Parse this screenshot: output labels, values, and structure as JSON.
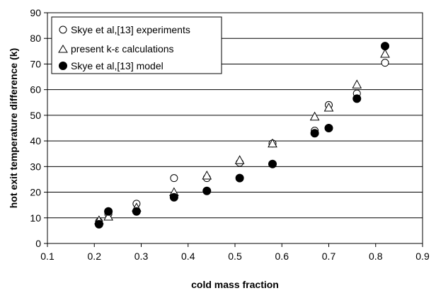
{
  "chart_data": {
    "type": "scatter",
    "xlabel": "cold mass fraction",
    "ylabel": "hot exit temperature difference (k)",
    "xlim": [
      0.1,
      0.9
    ],
    "ylim": [
      0,
      90
    ],
    "xticks": [
      "0.1",
      "0.2",
      "0.3",
      "0.4",
      "0.5",
      "0.6",
      "0.7",
      "0.8",
      "0.9"
    ],
    "yticks": [
      "0",
      "10",
      "20",
      "30",
      "40",
      "50",
      "60",
      "70",
      "80",
      "90"
    ],
    "grid": "horizontal",
    "legend_position": "top-left",
    "series": [
      {
        "name": "Skye et al,[13] experiments",
        "marker": "open-circle",
        "x": [
          0.21,
          0.23,
          0.29,
          0.37,
          0.44,
          0.51,
          0.58,
          0.67,
          0.7,
          0.76,
          0.82
        ],
        "y": [
          8.5,
          11.5,
          15.5,
          25.5,
          25.5,
          31.5,
          39,
          44,
          54,
          58.5,
          70.5
        ]
      },
      {
        "name": "present k-ε calculations",
        "marker": "open-triangle",
        "x": [
          0.21,
          0.23,
          0.29,
          0.37,
          0.44,
          0.51,
          0.58,
          0.67,
          0.7,
          0.76,
          0.82
        ],
        "y": [
          9,
          10.5,
          14,
          20,
          26.5,
          32.5,
          39,
          49.5,
          53,
          62,
          74
        ]
      },
      {
        "name": "Skye et al,[13] model",
        "marker": "filled-circle",
        "x": [
          0.21,
          0.23,
          0.29,
          0.37,
          0.44,
          0.51,
          0.58,
          0.67,
          0.7,
          0.76,
          0.82
        ],
        "y": [
          7.5,
          12.5,
          12.5,
          18,
          20.5,
          25.5,
          31,
          43,
          45,
          56.5,
          77
        ]
      }
    ]
  }
}
